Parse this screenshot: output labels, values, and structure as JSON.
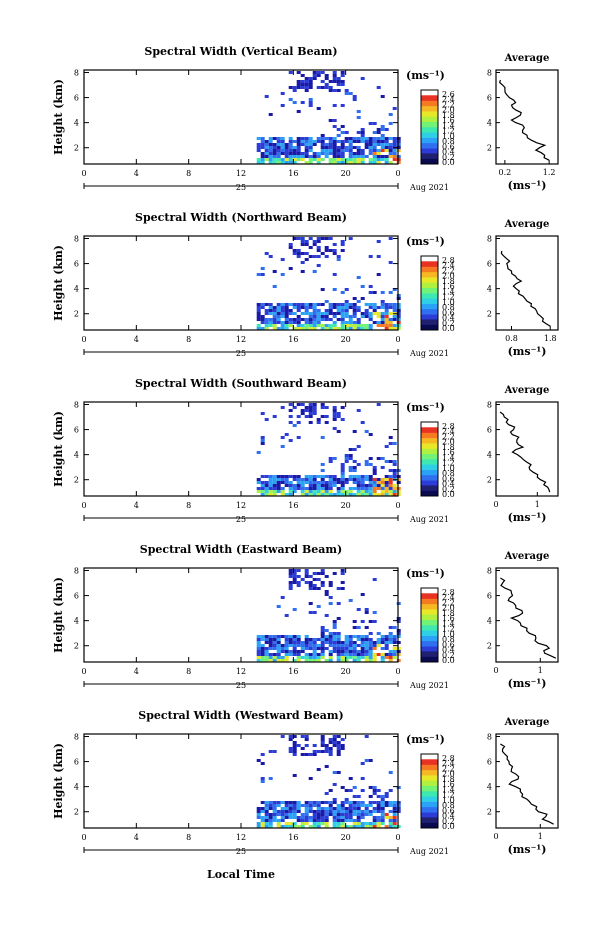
{
  "figure": {
    "xlabel_bottom": "Local Time",
    "date_text": "Aug 2021",
    "day_label": "25"
  },
  "colorbar": {
    "unit": "(ms⁻¹)",
    "colors": [
      "#1a1aa8",
      "#2b3dd6",
      "#2f6ff0",
      "#2aa2f5",
      "#2fd0e6",
      "#3ee8b0",
      "#72f276",
      "#b0f040",
      "#e8e828",
      "#f6b822",
      "#f67a22",
      "#e83222"
    ]
  },
  "chart_data": [
    {
      "type": "heatmap",
      "title": "Spectral Width (Vertical Beam)",
      "ylabel": "Height (km)",
      "x_ticks": [
        "0",
        "4",
        "8",
        "12",
        "16",
        "20",
        "0"
      ],
      "y_ticks": [
        "2",
        "4",
        "6",
        "8"
      ],
      "xlim": [
        0,
        24
      ],
      "ylim": [
        0.7,
        8.2
      ],
      "colorbar_ticks": [
        "2.6",
        "2.4",
        "2.2",
        "2.0",
        "1.8",
        "1.6",
        "1.4",
        "1.2",
        "1.0",
        "0.8",
        "0.6",
        "0.4",
        "0.2",
        "0.0"
      ],
      "colorbar_range": [
        0.0,
        2.8
      ],
      "data_extent": {
        "x_start": 13.2,
        "x_end": 24.0,
        "low_layer_top": 3.0,
        "upper_echo_min": 6.5
      },
      "average_profile": {
        "title": "Average",
        "x_ticks": [
          "0.2",
          "1.2"
        ],
        "xlim": [
          0,
          1.4
        ],
        "xlabel": "(ms⁻¹)",
        "y_ticks": [
          "2",
          "4",
          "6",
          "8"
        ],
        "ylim": [
          0.7,
          8.2
        ],
        "height": [
          1.0,
          1.4,
          1.8,
          2.2,
          2.6,
          3.0,
          3.4,
          3.8,
          4.2,
          4.6,
          5.0,
          5.4,
          5.8,
          6.2,
          6.6,
          7.0,
          7.4
        ],
        "width": [
          1.2,
          1.1,
          0.9,
          1.1,
          0.8,
          0.7,
          0.6,
          0.6,
          0.35,
          0.55,
          0.45,
          0.35,
          0.4,
          0.25,
          0.2,
          0.15,
          0.1
        ]
      }
    },
    {
      "type": "heatmap",
      "title": "Spectral Width (Northward Beam)",
      "ylabel": "Height (km)",
      "x_ticks": [
        "0",
        "4",
        "8",
        "12",
        "16",
        "20",
        "0"
      ],
      "y_ticks": [
        "2",
        "4",
        "6",
        "8"
      ],
      "xlim": [
        0,
        24
      ],
      "ylim": [
        0.7,
        8.2
      ],
      "colorbar_ticks": [
        "2.8",
        "2.4",
        "2.2",
        "2.0",
        "1.8",
        "1.6",
        "1.4",
        "1.2",
        "1.0",
        "0.8",
        "0.6",
        "0.4",
        "0.2",
        "0.0"
      ],
      "colorbar_range": [
        0.0,
        2.8
      ],
      "data_extent": {
        "x_start": 13.2,
        "x_end": 24.0,
        "low_layer_top": 3.0,
        "upper_echo_min": 6.5
      },
      "average_profile": {
        "title": "Average",
        "x_ticks": [
          "0.8",
          "1.8"
        ],
        "xlim": [
          0.4,
          2.0
        ],
        "xlabel": "(ms⁻¹)",
        "y_ticks": [
          "2",
          "4",
          "6",
          "8"
        ],
        "ylim": [
          0.7,
          8.2
        ],
        "height": [
          1.0,
          1.4,
          1.8,
          2.2,
          2.6,
          3.0,
          3.4,
          3.8,
          4.2,
          4.6,
          5.0,
          5.4,
          5.8,
          6.2,
          6.6,
          7.0
        ],
        "width": [
          1.8,
          1.6,
          1.55,
          1.45,
          1.3,
          1.2,
          1.1,
          1.0,
          0.85,
          1.05,
          0.9,
          0.8,
          0.7,
          0.75,
          0.6,
          0.55
        ]
      }
    },
    {
      "type": "heatmap",
      "title": "Spectral Width (Southward Beam)",
      "ylabel": "Height (km)",
      "x_ticks": [
        "0",
        "4",
        "8",
        "12",
        "16",
        "20",
        "0"
      ],
      "y_ticks": [
        "2",
        "4",
        "6",
        "8"
      ],
      "xlim": [
        0,
        24
      ],
      "ylim": [
        0.7,
        8.2
      ],
      "colorbar_ticks": [
        "2.8",
        "2.4",
        "2.2",
        "2.0",
        "1.8",
        "1.6",
        "1.4",
        "1.2",
        "1.0",
        "0.8",
        "0.6",
        "0.4",
        "0.2",
        "0.0"
      ],
      "colorbar_range": [
        0.0,
        2.8
      ],
      "data_extent": {
        "x_start": 13.2,
        "x_end": 24.0,
        "low_layer_top": 2.4,
        "upper_echo_min": 6.5
      },
      "average_profile": {
        "title": "Average",
        "x_ticks": [
          "0",
          "1"
        ],
        "xlim": [
          0,
          1.5
        ],
        "xlabel": "(ms⁻¹)",
        "y_ticks": [
          "2",
          "4",
          "6",
          "8"
        ],
        "ylim": [
          0.7,
          8.2
        ],
        "height": [
          1.0,
          1.4,
          1.8,
          2.2,
          2.6,
          3.0,
          3.4,
          3.8,
          4.2,
          4.6,
          5.0,
          5.4,
          5.8,
          6.2,
          6.6,
          7.0,
          7.4
        ],
        "width": [
          1.3,
          1.25,
          1.2,
          1.0,
          0.9,
          0.8,
          0.75,
          0.6,
          0.4,
          0.65,
          0.5,
          0.55,
          0.35,
          0.45,
          0.25,
          0.2,
          0.1
        ]
      }
    },
    {
      "type": "heatmap",
      "title": "Spectral Width (Eastward Beam)",
      "ylabel": "Height (km)",
      "x_ticks": [
        "0",
        "4",
        "8",
        "12",
        "16",
        "20",
        "0"
      ],
      "y_ticks": [
        "2",
        "4",
        "6",
        "8"
      ],
      "xlim": [
        0,
        24
      ],
      "ylim": [
        0.7,
        8.2
      ],
      "colorbar_ticks": [
        "2.8",
        "2.4",
        "2.2",
        "2.0",
        "1.8",
        "1.6",
        "1.4",
        "1.2",
        "1.0",
        "0.8",
        "0.6",
        "0.4",
        "0.2",
        "0.0"
      ],
      "colorbar_range": [
        0.0,
        2.8
      ],
      "data_extent": {
        "x_start": 13.2,
        "x_end": 24.0,
        "low_layer_top": 3.0,
        "upper_echo_min": 6.5
      },
      "average_profile": {
        "title": "Average",
        "x_ticks": [
          "0",
          "1"
        ],
        "xlim": [
          0,
          1.4
        ],
        "xlabel": "(ms⁻¹)",
        "y_ticks": [
          "2",
          "4",
          "6",
          "8"
        ],
        "ylim": [
          0.7,
          8.2
        ],
        "height": [
          1.0,
          1.4,
          1.8,
          2.2,
          2.6,
          3.0,
          3.4,
          3.8,
          4.2,
          4.6,
          5.0,
          5.4,
          5.8,
          6.2,
          6.6,
          7.0,
          7.4
        ],
        "width": [
          1.35,
          1.1,
          1.2,
          0.95,
          0.9,
          0.75,
          0.7,
          0.55,
          0.35,
          0.6,
          0.45,
          0.4,
          0.3,
          0.35,
          0.2,
          0.15,
          0.1
        ]
      }
    },
    {
      "type": "heatmap",
      "title": "Spectral Width (Westward Beam)",
      "ylabel": "Height (km)",
      "x_ticks": [
        "0",
        "4",
        "8",
        "12",
        "16",
        "20",
        "0"
      ],
      "y_ticks": [
        "2",
        "4",
        "6",
        "8"
      ],
      "xlim": [
        0,
        24
      ],
      "ylim": [
        0.7,
        8.2
      ],
      "colorbar_ticks": [
        "2.8",
        "2.4",
        "2.2",
        "2.0",
        "1.8",
        "1.6",
        "1.4",
        "1.2",
        "1.0",
        "0.8",
        "0.6",
        "0.4",
        "0.2",
        "0.0"
      ],
      "colorbar_range": [
        0.0,
        2.8
      ],
      "data_extent": {
        "x_start": 13.2,
        "x_end": 24.0,
        "low_layer_top": 3.0,
        "upper_echo_min": 6.5
      },
      "average_profile": {
        "title": "Average",
        "x_ticks": [
          "0",
          "1"
        ],
        "xlim": [
          0,
          1.4
        ],
        "xlabel": "(ms⁻¹)",
        "y_ticks": [
          "2",
          "4",
          "6",
          "8"
        ],
        "ylim": [
          0.7,
          8.2
        ],
        "height": [
          1.0,
          1.4,
          1.8,
          2.2,
          2.6,
          3.0,
          3.4,
          3.8,
          4.2,
          4.6,
          5.0,
          5.4,
          5.8,
          6.2,
          6.6,
          7.0,
          7.4
        ],
        "width": [
          1.3,
          1.05,
          1.15,
          0.9,
          0.8,
          0.7,
          0.6,
          0.55,
          0.3,
          0.5,
          0.45,
          0.35,
          0.3,
          0.25,
          0.2,
          0.15,
          0.1
        ]
      }
    }
  ]
}
